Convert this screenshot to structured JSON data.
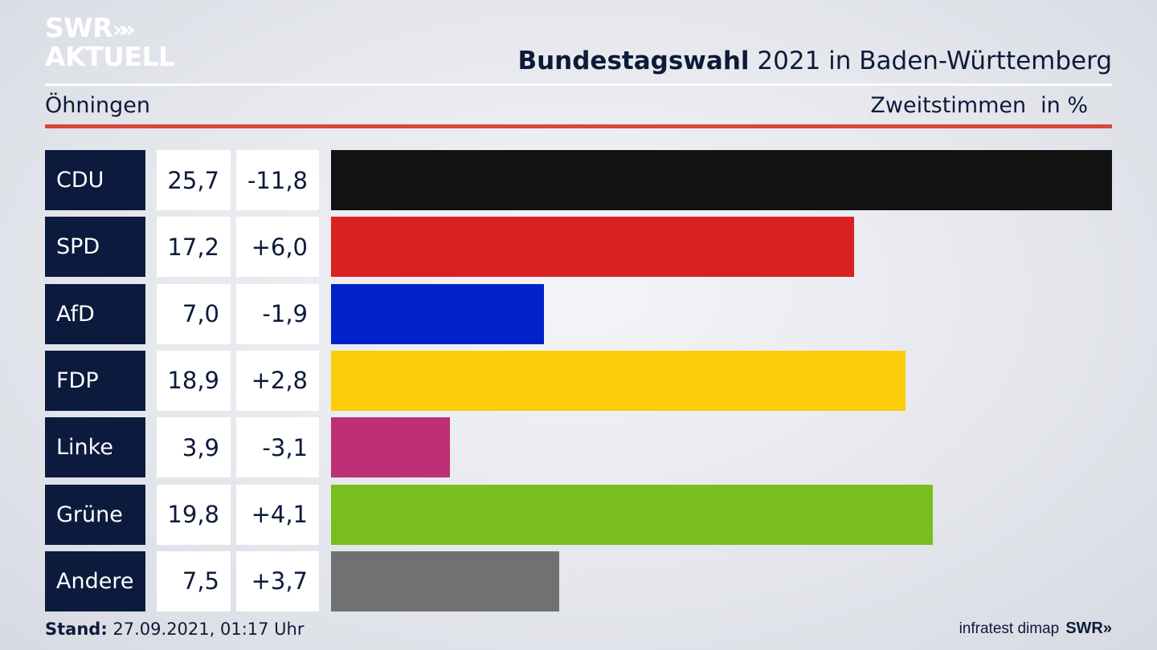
{
  "logo": {
    "line1": "SWR",
    "line2": "AKTUELL",
    "chevrons": "»"
  },
  "header": {
    "title_bold": "Bundestagswahl",
    "title_rest": " 2021 in Baden-Württemberg",
    "location": "Öhningen",
    "measure": "Zweitstimmen",
    "unit": "in %"
  },
  "footer": {
    "stand_label": "Stand:",
    "stand_value": " 27.09.2021, 01:17 Uhr",
    "source": "infratest dimap",
    "brand": "SWR»"
  },
  "chart_data": {
    "type": "bar",
    "orientation": "horizontal",
    "categories": [
      "CDU",
      "SPD",
      "AfD",
      "FDP",
      "Linke",
      "Grüne",
      "Andere"
    ],
    "values": [
      25.7,
      17.2,
      7.0,
      18.9,
      3.9,
      19.8,
      7.5
    ],
    "value_labels": [
      "25,7",
      "17,2",
      "7,0",
      "18,9",
      "3,9",
      "19,8",
      "7,5"
    ],
    "diff_labels": [
      "-11,8",
      "+6,0",
      "-1,9",
      "+2,8",
      "-3,1",
      "+4,1",
      "+3,7"
    ],
    "colors": [
      "#121212",
      "#d92121",
      "#0121c9",
      "#fdcc0a",
      "#be3075",
      "#78be1e",
      "#707173"
    ],
    "xlim": [
      0,
      25.7
    ]
  }
}
